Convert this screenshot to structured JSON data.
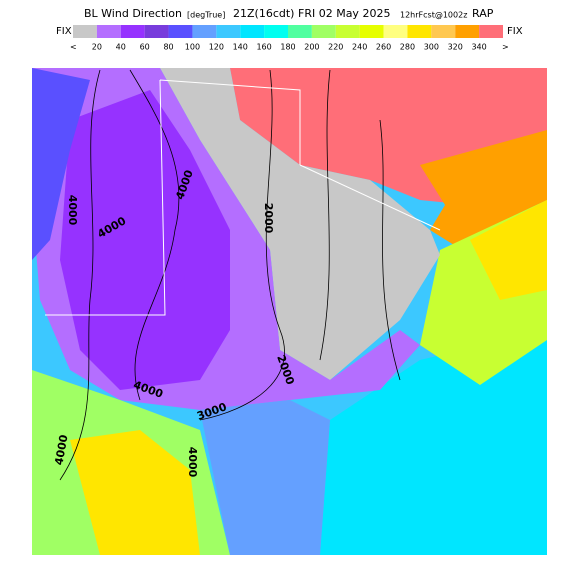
{
  "header": {
    "title": "BL Wind Direction",
    "units": "[degTrue]",
    "valid": "21Z(16cdt)",
    "date": "FRI 02 May 2025",
    "forecast": "12hrFcst@1002z",
    "model": "RAP"
  },
  "colorbar": {
    "left_label": "FIX",
    "right_label": "FIX",
    "left_arrow": "<",
    "right_arrow": ">",
    "colors": [
      "#c8c8c8",
      "#b46eff",
      "#9632ff",
      "#783cdc",
      "#5a50ff",
      "#64a0ff",
      "#3cc8ff",
      "#00e6ff",
      "#00fff0",
      "#50ffa0",
      "#a0ff64",
      "#c8ff32",
      "#e6ff00",
      "#ffff80",
      "#ffe600",
      "#ffc850",
      "#ffa000",
      "#ff6e78"
    ],
    "labels": [
      20,
      40,
      60,
      80,
      100,
      120,
      140,
      160,
      180,
      200,
      220,
      240,
      260,
      280,
      300,
      320,
      340
    ]
  },
  "contour_labels": [
    "4000",
    "4000",
    "4000",
    "2000",
    "2000",
    "3000",
    "4000",
    "4000",
    "4000"
  ]
}
